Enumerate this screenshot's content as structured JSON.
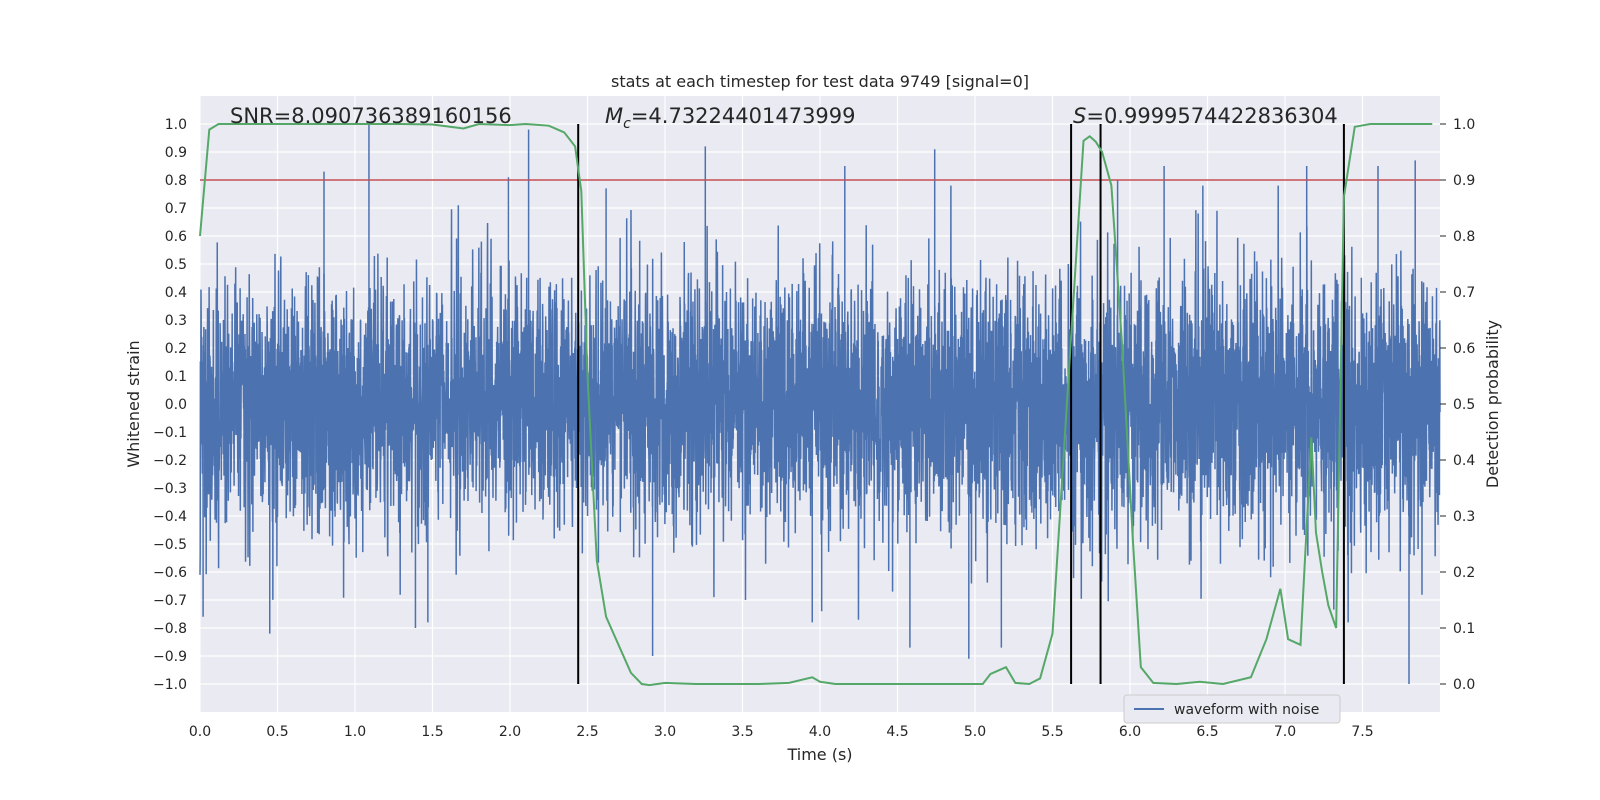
{
  "chart_data": {
    "type": "line",
    "title": "stats at each timestep for test data 9749 [signal=0]",
    "xlabel": "Time (s)",
    "ylabel": "Whitened strain",
    "y2label": "Detection probability",
    "xlim": [
      0,
      8
    ],
    "ylim": [
      -1.1,
      1.1
    ],
    "y2lim": [
      -0.05,
      1.05
    ],
    "xticks": [
      "0.0",
      "0.5",
      "1.0",
      "1.5",
      "2.0",
      "2.5",
      "3.0",
      "3.5",
      "4.0",
      "4.5",
      "5.0",
      "5.5",
      "6.0",
      "6.5",
      "7.0",
      "7.5"
    ],
    "xtick_values": [
      0,
      0.5,
      1,
      1.5,
      2,
      2.5,
      3,
      3.5,
      4,
      4.5,
      5,
      5.5,
      6,
      6.5,
      7,
      7.5
    ],
    "yticks": [
      "1.0",
      "0.9",
      "0.8",
      "0.7",
      "0.6",
      "0.5",
      "0.4",
      "0.3",
      "0.2",
      "0.1",
      "0.0",
      "−0.1",
      "−0.2",
      "−0.3",
      "−0.4",
      "−0.5",
      "−0.6",
      "−0.7",
      "−0.8",
      "−0.9",
      "−1.0"
    ],
    "ytick_values": [
      1.0,
      0.9,
      0.8,
      0.7,
      0.6,
      0.5,
      0.4,
      0.3,
      0.2,
      0.1,
      0.0,
      -0.1,
      -0.2,
      -0.3,
      -0.4,
      -0.5,
      -0.6,
      -0.7,
      -0.8,
      -0.9,
      -1.0
    ],
    "y2ticks": [
      "1.0",
      "0.9",
      "0.8",
      "0.7",
      "0.6",
      "0.5",
      "0.4",
      "0.3",
      "0.2",
      "0.1",
      "0.0"
    ],
    "y2tick_values": [
      1.0,
      0.9,
      0.8,
      0.7,
      0.6,
      0.5,
      0.4,
      0.3,
      0.2,
      0.1,
      0.0
    ],
    "annotations": {
      "snr": "SNR=8.090736389160156",
      "mc_symbol": "M",
      "mc_sub": "c",
      "mc_value": "=4.73224401473999",
      "s_symbol": "S",
      "s_value": "=0.9999574422836304"
    },
    "legend": {
      "label": "waveform with noise",
      "placement": "lower-right"
    },
    "threshold": {
      "value": 0.9,
      "axis": "y2",
      "color": "#c44e52"
    },
    "vertical_markers": [
      2.44,
      5.62,
      5.81,
      7.38
    ],
    "series": [
      {
        "name": "waveform with noise",
        "axis": "y",
        "color": "#4c72b0",
        "description": "noisy whitened strain, sampled densely; typical envelope about +/-0.5",
        "peaks": [
          {
            "x": 0.02,
            "y": -0.76
          },
          {
            "x": 0.45,
            "y": -0.82
          },
          {
            "x": 0.8,
            "y": 0.83
          },
          {
            "x": 1.09,
            "y": 1.0
          },
          {
            "x": 1.39,
            "y": -0.8
          },
          {
            "x": 1.47,
            "y": -0.78
          },
          {
            "x": 1.99,
            "y": 0.81
          },
          {
            "x": 2.12,
            "y": 0.98
          },
          {
            "x": 2.62,
            "y": 0.77
          },
          {
            "x": 2.92,
            "y": -0.9
          },
          {
            "x": 3.26,
            "y": 0.92
          },
          {
            "x": 3.95,
            "y": -0.78
          },
          {
            "x": 4.16,
            "y": 0.85
          },
          {
            "x": 4.74,
            "y": 0.91
          },
          {
            "x": 4.58,
            "y": -0.87
          },
          {
            "x": 5.17,
            "y": -0.87
          },
          {
            "x": 4.96,
            "y": -0.91
          },
          {
            "x": 5.92,
            "y": 0.8
          },
          {
            "x": 6.22,
            "y": 0.85
          },
          {
            "x": 6.47,
            "y": 0.78
          },
          {
            "x": 7.14,
            "y": 0.85
          },
          {
            "x": 7.6,
            "y": 0.85
          },
          {
            "x": 7.8,
            "y": -1.0
          },
          {
            "x": 7.84,
            "y": 0.87
          }
        ]
      },
      {
        "name": "detection probability",
        "axis": "y2",
        "color": "#55a868",
        "x": [
          0,
          0.06,
          0.12,
          0.2,
          0.5,
          0.8,
          1.0,
          1.3,
          1.5,
          1.7,
          1.8,
          2.0,
          2.1,
          2.25,
          2.35,
          2.42,
          2.46,
          2.5,
          2.56,
          2.62,
          2.7,
          2.78,
          2.85,
          2.9,
          3.0,
          3.2,
          3.4,
          3.6,
          3.8,
          3.95,
          4.0,
          4.1,
          4.5,
          4.8,
          5.05,
          5.1,
          5.2,
          5.26,
          5.35,
          5.42,
          5.5,
          5.57,
          5.62,
          5.7,
          5.74,
          5.78,
          5.82,
          5.88,
          5.95,
          6.02,
          6.07,
          6.15,
          6.3,
          6.45,
          6.6,
          6.78,
          6.88,
          6.97,
          7.02,
          7.1,
          7.17,
          7.2,
          7.24,
          7.28,
          7.33,
          7.38,
          7.45,
          7.55,
          7.7,
          7.85,
          7.95
        ],
        "y": [
          0.8,
          0.99,
          1.0,
          1.0,
          1.0,
          1.0,
          1.0,
          1.0,
          0.999,
          0.992,
          1.0,
          0.998,
          1.0,
          0.997,
          0.985,
          0.96,
          0.88,
          0.55,
          0.22,
          0.12,
          0.07,
          0.02,
          0.0,
          -0.002,
          0.002,
          0.0,
          0.0,
          0.0,
          0.002,
          0.012,
          0.004,
          0.0,
          0.0,
          0.0,
          0.0,
          0.018,
          0.03,
          0.002,
          0.0,
          0.01,
          0.09,
          0.4,
          0.62,
          0.97,
          0.978,
          0.968,
          0.95,
          0.89,
          0.6,
          0.25,
          0.03,
          0.002,
          0.0,
          0.004,
          0.0,
          0.012,
          0.08,
          0.17,
          0.08,
          0.07,
          0.44,
          0.27,
          0.2,
          0.14,
          0.1,
          0.87,
          0.995,
          1.0,
          1.0,
          1.0,
          1.0
        ]
      }
    ]
  }
}
